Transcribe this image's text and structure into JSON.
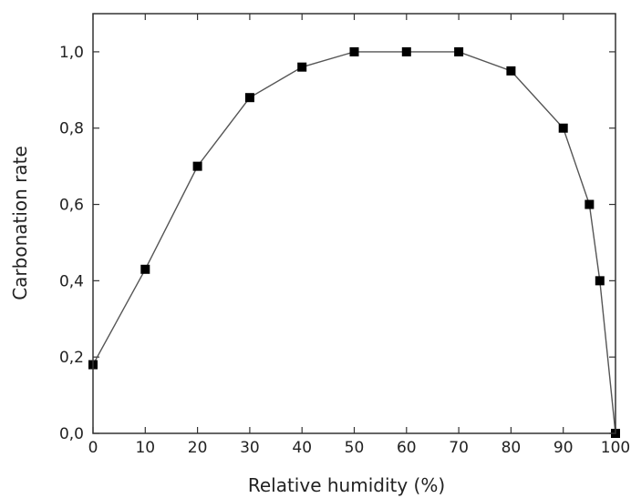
{
  "chart_data": {
    "type": "line",
    "title": "",
    "xlabel": "Relative humidity (%)",
    "ylabel": "Carbonation rate",
    "xlim": [
      0,
      100
    ],
    "ylim": [
      0.0,
      1.1
    ],
    "x_ticks": [
      0,
      10,
      20,
      30,
      40,
      50,
      60,
      70,
      80,
      90,
      100
    ],
    "x_tick_labels": [
      "0",
      "10",
      "20",
      "30",
      "40",
      "50",
      "60",
      "70",
      "80",
      "90",
      "100"
    ],
    "y_ticks": [
      0.0,
      0.2,
      0.4,
      0.6,
      0.8,
      1.0
    ],
    "y_tick_labels": [
      "0,0",
      "0,2",
      "0,4",
      "0,6",
      "0,8",
      "1,0"
    ],
    "grid": false,
    "marker": "square",
    "series": [
      {
        "x": [
          0,
          10,
          20,
          30,
          40,
          50,
          60,
          70,
          80,
          90,
          95,
          97,
          100
        ],
        "y": [
          0.18,
          0.43,
          0.7,
          0.88,
          0.96,
          1.0,
          1.0,
          1.0,
          0.95,
          0.8,
          0.6,
          0.4,
          0.0
        ]
      }
    ],
    "colors": {
      "line": "#555555",
      "marker": "#000000",
      "axis": "#333333"
    }
  }
}
